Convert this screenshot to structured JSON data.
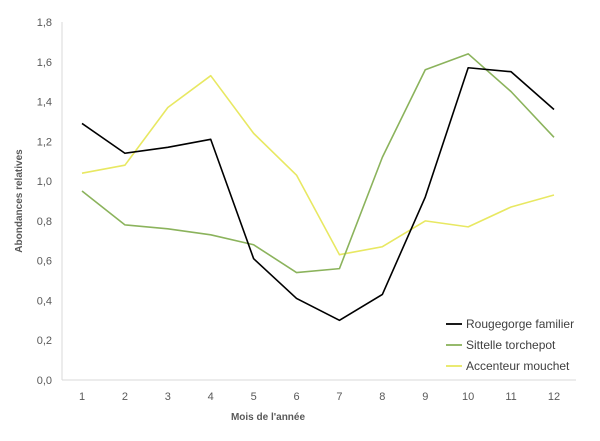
{
  "chart_data": {
    "type": "line",
    "title": "",
    "xlabel": "Mois de l'année",
    "ylabel": "Abondances relatives",
    "x": [
      1,
      2,
      3,
      4,
      5,
      6,
      7,
      8,
      9,
      10,
      11,
      12
    ],
    "x_tick_labels": [
      "1",
      "2",
      "3",
      "4",
      "5",
      "6",
      "7",
      "8",
      "9",
      "10",
      "11",
      "12"
    ],
    "ylim": [
      0,
      1.8
    ],
    "y_ticks": [
      0,
      0.2,
      0.4,
      0.6,
      0.8,
      1.0,
      1.2,
      1.4,
      1.6,
      1.8
    ],
    "y_tick_labels": [
      "0,0",
      "0,2",
      "0,4",
      "0,6",
      "0,8",
      "1,0",
      "1,2",
      "1,4",
      "1,6",
      "1,8"
    ],
    "grid": false,
    "legend_position": "bottom-right",
    "series": [
      {
        "name": "Rougegorge familier",
        "color": "#000000",
        "values": [
          1.29,
          1.14,
          1.17,
          1.21,
          0.61,
          0.41,
          0.3,
          0.43,
          0.92,
          1.57,
          1.55,
          1.36
        ]
      },
      {
        "name": "Sittelle torchepot",
        "color": "#8BB35C",
        "values": [
          0.95,
          0.78,
          0.76,
          0.73,
          0.68,
          0.54,
          0.56,
          1.12,
          1.56,
          1.64,
          1.45,
          1.22
        ]
      },
      {
        "name": "Accenteur mouchet",
        "color": "#E8E862",
        "values": [
          1.04,
          1.08,
          1.37,
          1.53,
          1.24,
          1.03,
          0.63,
          0.67,
          0.8,
          0.77,
          0.87,
          0.93
        ]
      }
    ]
  }
}
